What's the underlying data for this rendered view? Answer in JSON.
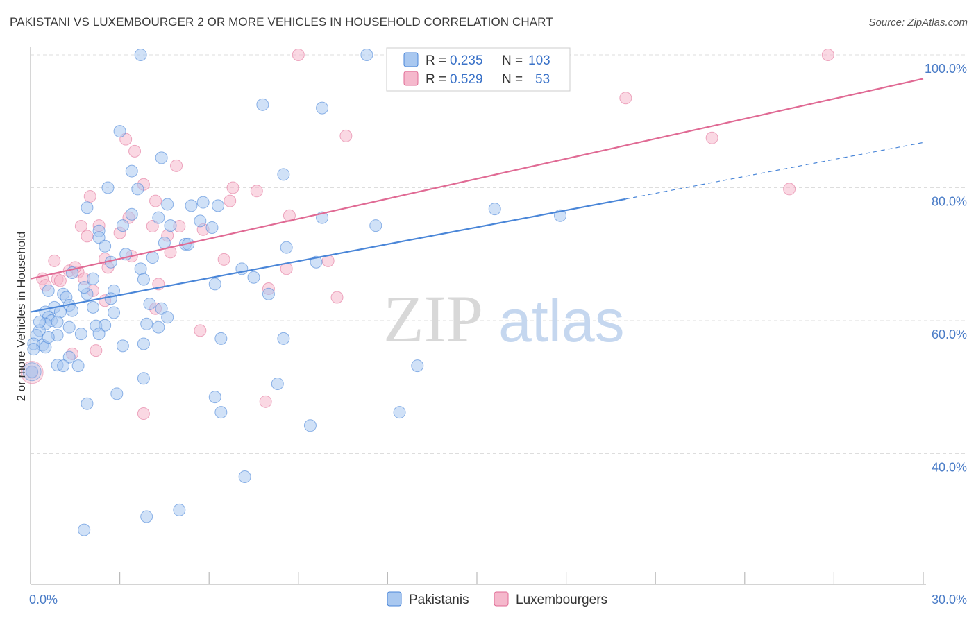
{
  "title": "PAKISTANI VS LUXEMBOURGER 2 OR MORE VEHICLES IN HOUSEHOLD CORRELATION CHART",
  "source": "Source: ZipAtlas.com",
  "watermark": {
    "zip": "ZIP",
    "atlas": "atlas"
  },
  "colors": {
    "blue": "#4a86d8",
    "blue_fill": "#a9c8f0",
    "pink": "#e06a94",
    "pink_fill": "#f5b8cc",
    "grid": "#dddddd",
    "tick_text": "#4a7cc7"
  },
  "legend": {
    "rows": [
      {
        "r_label": "R =",
        "r_value": "0.235",
        "n_label": "N =",
        "n_value": "103"
      },
      {
        "r_label": "R =",
        "r_value": "0.529",
        "n_label": "N =",
        "n_value": "53"
      }
    ],
    "bottom": [
      "Pakistanis",
      "Luxembourgers"
    ]
  },
  "chart_data": {
    "type": "scatter",
    "title": "PAKISTANI VS LUXEMBOURGER 2 OR MORE VEHICLES IN HOUSEHOLD CORRELATION CHART",
    "xlabel": "",
    "ylabel": "2 or more Vehicles in Household",
    "xlim": [
      0,
      30
    ],
    "ylim": [
      20,
      100
    ],
    "x_tick_labels": [
      "0.0%",
      "30.0%"
    ],
    "y_ticks": [
      40,
      60,
      80,
      100
    ],
    "y_tick_labels": [
      "40.0%",
      "60.0%",
      "80.0%",
      "100.0%"
    ],
    "grid": true,
    "legend_position": "top-center",
    "series": [
      {
        "name": "Pakistanis",
        "color": "#4a86d8",
        "r": 0.235,
        "n": 103,
        "trend": {
          "x0": 0,
          "y0": 61.3,
          "x1": 20.0,
          "y1": 78.3,
          "dashed_to_x": 30,
          "dashed_to_y": 86.8
        },
        "points": [
          [
            3.7,
            100
          ],
          [
            11.3,
            100
          ],
          [
            7.8,
            92.5
          ],
          [
            9.8,
            92
          ],
          [
            3.0,
            88.5
          ],
          [
            4.4,
            84.5
          ],
          [
            3.4,
            82.5
          ],
          [
            8.5,
            82
          ],
          [
            2.6,
            80
          ],
          [
            3.6,
            79.8
          ],
          [
            1.9,
            77
          ],
          [
            4.6,
            77.5
          ],
          [
            5.4,
            77.3
          ],
          [
            5.8,
            77.8
          ],
          [
            6.3,
            77.3
          ],
          [
            3.4,
            76
          ],
          [
            4.3,
            75.5
          ],
          [
            5.7,
            75
          ],
          [
            2.3,
            73.5
          ],
          [
            3.1,
            74.3
          ],
          [
            4.7,
            74.3
          ],
          [
            6.1,
            74
          ],
          [
            11.6,
            74.3
          ],
          [
            15.6,
            76.8
          ],
          [
            17.8,
            75.8
          ],
          [
            2.3,
            72.5
          ],
          [
            4.5,
            71.7
          ],
          [
            5.2,
            71.5
          ],
          [
            2.5,
            71.2
          ],
          [
            8.6,
            71
          ],
          [
            3.2,
            70
          ],
          [
            2.7,
            68.8
          ],
          [
            3.7,
            67.8
          ],
          [
            1.4,
            67.2
          ],
          [
            7.1,
            67.8
          ],
          [
            9.6,
            68.8
          ],
          [
            3.8,
            66.2
          ],
          [
            7.5,
            66.5
          ],
          [
            9.8,
            75.5
          ],
          [
            6.2,
            65.5
          ],
          [
            0.6,
            64.5
          ],
          [
            1.1,
            64
          ],
          [
            2.8,
            64.5
          ],
          [
            2.7,
            63.3
          ],
          [
            1.2,
            63.5
          ],
          [
            1.9,
            64
          ],
          [
            8.0,
            64
          ],
          [
            1.3,
            62.3
          ],
          [
            2.1,
            62
          ],
          [
            0.8,
            62
          ],
          [
            0.5,
            61.3
          ],
          [
            1.0,
            61.3
          ],
          [
            1.4,
            61.5
          ],
          [
            2.8,
            61.2
          ],
          [
            4.4,
            61.8
          ],
          [
            0.6,
            60.5
          ],
          [
            0.7,
            60
          ],
          [
            0.9,
            59.8
          ],
          [
            0.5,
            59.5
          ],
          [
            2.2,
            59.2
          ],
          [
            2.5,
            59.3
          ],
          [
            3.9,
            59.5
          ],
          [
            4.3,
            59
          ],
          [
            4.6,
            60.5
          ],
          [
            0.3,
            58.5
          ],
          [
            0.2,
            57.8
          ],
          [
            0.9,
            57.8
          ],
          [
            1.7,
            58
          ],
          [
            2.3,
            58
          ],
          [
            6.4,
            57.3
          ],
          [
            8.5,
            57.3
          ],
          [
            0.1,
            56.5
          ],
          [
            0.4,
            56.3
          ],
          [
            3.1,
            56.2
          ],
          [
            3.8,
            56.5
          ],
          [
            1.3,
            54.5
          ],
          [
            0.9,
            53.3
          ],
          [
            1.1,
            53.2
          ],
          [
            1.6,
            53.2
          ],
          [
            13.0,
            53.2
          ],
          [
            0.05,
            52.3
          ],
          [
            3.8,
            51.3
          ],
          [
            8.3,
            50.5
          ],
          [
            2.9,
            49
          ],
          [
            1.9,
            47.5
          ],
          [
            6.2,
            48.5
          ],
          [
            6.4,
            46.2
          ],
          [
            12.4,
            46.2
          ],
          [
            9.4,
            44.2
          ],
          [
            7.2,
            36.5
          ],
          [
            5.0,
            31.5
          ],
          [
            3.9,
            30.5
          ],
          [
            1.8,
            28.5
          ],
          [
            0.1,
            55.7
          ],
          [
            0.5,
            56
          ],
          [
            1.3,
            59
          ],
          [
            0.6,
            57.5
          ],
          [
            1.8,
            65
          ],
          [
            2.1,
            66.3
          ],
          [
            4.1,
            69.5
          ],
          [
            5.3,
            71.5
          ],
          [
            4.0,
            62.5
          ],
          [
            0.3,
            59.8
          ]
        ]
      },
      {
        "name": "Luxembourgers",
        "color": "#e06a94",
        "r": 0.529,
        "n": 53,
        "trend": {
          "x0": 0,
          "y0": 66.3,
          "x1": 30,
          "y1": 96.4
        },
        "points": [
          [
            9.0,
            100
          ],
          [
            26.8,
            100
          ],
          [
            20.0,
            93.5
          ],
          [
            10.6,
            87.8
          ],
          [
            22.9,
            87.5
          ],
          [
            3.2,
            87.3
          ],
          [
            3.5,
            85.5
          ],
          [
            4.9,
            83.3
          ],
          [
            3.8,
            80.5
          ],
          [
            6.8,
            80
          ],
          [
            7.6,
            79.5
          ],
          [
            25.5,
            79.8
          ],
          [
            2.0,
            78.7
          ],
          [
            4.2,
            78
          ],
          [
            6.7,
            78
          ],
          [
            8.7,
            75.8
          ],
          [
            3.3,
            75.5
          ],
          [
            1.7,
            74.2
          ],
          [
            4.1,
            74.2
          ],
          [
            5.0,
            74.2
          ],
          [
            2.3,
            74.3
          ],
          [
            5.8,
            73.7
          ],
          [
            3.0,
            73.2
          ],
          [
            1.9,
            72.7
          ],
          [
            4.6,
            72.8
          ],
          [
            4.7,
            70.3
          ],
          [
            3.4,
            69.7
          ],
          [
            2.5,
            69.3
          ],
          [
            6.5,
            69.2
          ],
          [
            0.8,
            69
          ],
          [
            10.0,
            69
          ],
          [
            8.6,
            67.8
          ],
          [
            1.3,
            67.5
          ],
          [
            1.6,
            67.3
          ],
          [
            1.5,
            68
          ],
          [
            2.6,
            68
          ],
          [
            0.4,
            66.3
          ],
          [
            0.9,
            66.2
          ],
          [
            1.8,
            66.3
          ],
          [
            1.0,
            66
          ],
          [
            0.5,
            65.3
          ],
          [
            4.3,
            65.5
          ],
          [
            8.0,
            64.8
          ],
          [
            2.1,
            64.5
          ],
          [
            10.3,
            63.5
          ],
          [
            2.5,
            63
          ],
          [
            4.2,
            61.8
          ],
          [
            5.7,
            58.5
          ],
          [
            2.2,
            55.5
          ],
          [
            1.4,
            55
          ],
          [
            7.9,
            47.8
          ],
          [
            3.8,
            46
          ],
          [
            0.05,
            52.2
          ]
        ]
      }
    ]
  }
}
